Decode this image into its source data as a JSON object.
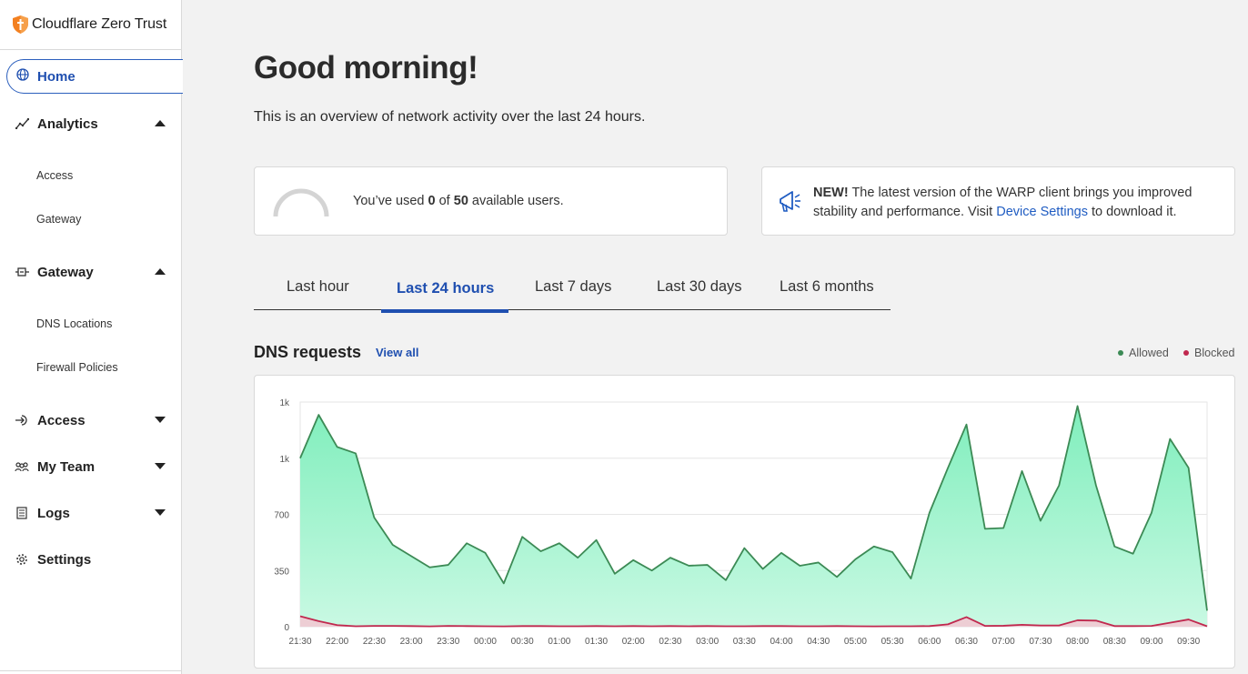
{
  "brand": {
    "name": "Cloudflare Zero Trust",
    "accent": "#f38020"
  },
  "sidebar": {
    "home": "Home",
    "analytics": {
      "label": "Analytics",
      "items": [
        "Access",
        "Gateway"
      ]
    },
    "gateway": {
      "label": "Gateway",
      "items": [
        "DNS Locations",
        "Firewall Policies"
      ]
    },
    "access": "Access",
    "my_team": "My Team",
    "logs": "Logs",
    "settings": "Settings"
  },
  "main": {
    "greeting": "Good morning!",
    "subtitle": "This is an overview of network activity over the last 24 hours.",
    "users_card": {
      "prefix": "You’ve used ",
      "used": "0",
      "mid": " of ",
      "total": "50",
      "suffix": " available users."
    },
    "news_card": {
      "badge": "NEW!",
      "text": " The latest version of the WARP client brings you improved stability and performance. Visit ",
      "link": "Device Settings",
      "tail": " to download it."
    },
    "tabs": [
      {
        "label": "Last hour"
      },
      {
        "label": "Last 24 hours",
        "active": true
      },
      {
        "label": "Last 7 days"
      },
      {
        "label": "Last 30 days"
      },
      {
        "label": "Last 6 months"
      }
    ],
    "dns": {
      "title": "DNS requests",
      "view_all": "View all",
      "legend_allowed": "Allowed",
      "legend_blocked": "Blocked"
    }
  },
  "chart_data": {
    "type": "area",
    "x": [
      "21:30",
      "21:45",
      "22:00",
      "22:15",
      "22:30",
      "22:45",
      "23:00",
      "23:15",
      "23:30",
      "23:45",
      "00:00",
      "00:15",
      "00:30",
      "00:45",
      "01:00",
      "01:15",
      "01:30",
      "01:45",
      "02:00",
      "02:15",
      "02:30",
      "02:45",
      "03:00",
      "03:15",
      "03:30",
      "03:45",
      "04:00",
      "04:15",
      "04:30",
      "04:45",
      "05:00",
      "05:15",
      "05:30",
      "05:45",
      "06:00",
      "06:15",
      "06:30",
      "06:45",
      "07:00",
      "07:15",
      "07:30",
      "07:45",
      "08:00",
      "08:15",
      "08:30",
      "08:45",
      "09:00",
      "09:15",
      "09:30",
      "09:45"
    ],
    "tick_labels": [
      "21:30",
      "22:00",
      "22:30",
      "23:00",
      "23:30",
      "00:00",
      "00:30",
      "01:00",
      "01:30",
      "02:00",
      "02:30",
      "03:00",
      "03:30",
      "04:00",
      "04:30",
      "05:00",
      "05:30",
      "06:00",
      "06:30",
      "07:00",
      "07:30",
      "08:00",
      "08:30",
      "09:00",
      "09:30"
    ],
    "series": [
      {
        "name": "Allowed",
        "color": "#3c8a55",
        "values": [
          1050,
          1320,
          1120,
          1080,
          680,
          510,
          440,
          370,
          385,
          520,
          460,
          270,
          560,
          470,
          520,
          430,
          540,
          330,
          415,
          350,
          430,
          380,
          385,
          290,
          490,
          360,
          460,
          380,
          400,
          310,
          420,
          500,
          465,
          300,
          710,
          990,
          1260,
          610,
          615,
          970,
          660,
          880,
          1375,
          880,
          500,
          455,
          710,
          1170,
          990,
          100
        ]
      },
      {
        "name": "Blocked",
        "color": "#c0284e",
        "values": [
          65,
          35,
          10,
          3,
          5,
          5,
          4,
          2,
          5,
          4,
          3,
          2,
          4,
          4,
          3,
          3,
          4,
          3,
          4,
          3,
          4,
          3,
          4,
          3,
          3,
          4,
          4,
          3,
          3,
          4,
          3,
          2,
          3,
          3,
          4,
          15,
          60,
          5,
          6,
          12,
          8,
          8,
          40,
          38,
          4,
          4,
          5,
          25,
          45,
          3
        ]
      }
    ],
    "y_ticks": [
      "0",
      "350",
      "700",
      "1k",
      "1k"
    ],
    "ylim": [
      0,
      1400
    ],
    "grid": true,
    "legend": "top-right"
  }
}
